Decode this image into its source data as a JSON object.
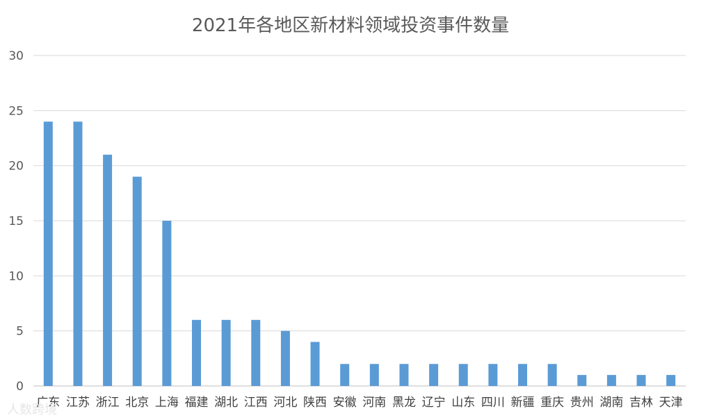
{
  "colors": {
    "bar": "#5b9bd5",
    "grid": "#d9d9d9",
    "text": "#595959"
  },
  "watermark": {
    "text": "人数跨境"
  },
  "chart_data": {
    "type": "bar",
    "title": "2021年各地区新材料领域投资事件数量",
    "xlabel": "",
    "ylabel": "",
    "ylim": [
      0,
      30
    ],
    "yticks": [
      0,
      5,
      10,
      15,
      20,
      25,
      30
    ],
    "grid": true,
    "legend": "none",
    "categories": [
      "广东",
      "江苏",
      "浙江",
      "北京",
      "上海",
      "福建",
      "湖北",
      "江西",
      "河北",
      "陕西",
      "安徽",
      "河南",
      "黑龙",
      "辽宁",
      "山东",
      "四川",
      "新疆",
      "重庆",
      "贵州",
      "湖南",
      "吉林",
      "天津"
    ],
    "values": [
      24,
      24,
      21,
      19,
      15,
      6,
      6,
      6,
      5,
      4,
      2,
      2,
      2,
      2,
      2,
      2,
      2,
      2,
      1,
      1,
      1,
      1
    ]
  }
}
